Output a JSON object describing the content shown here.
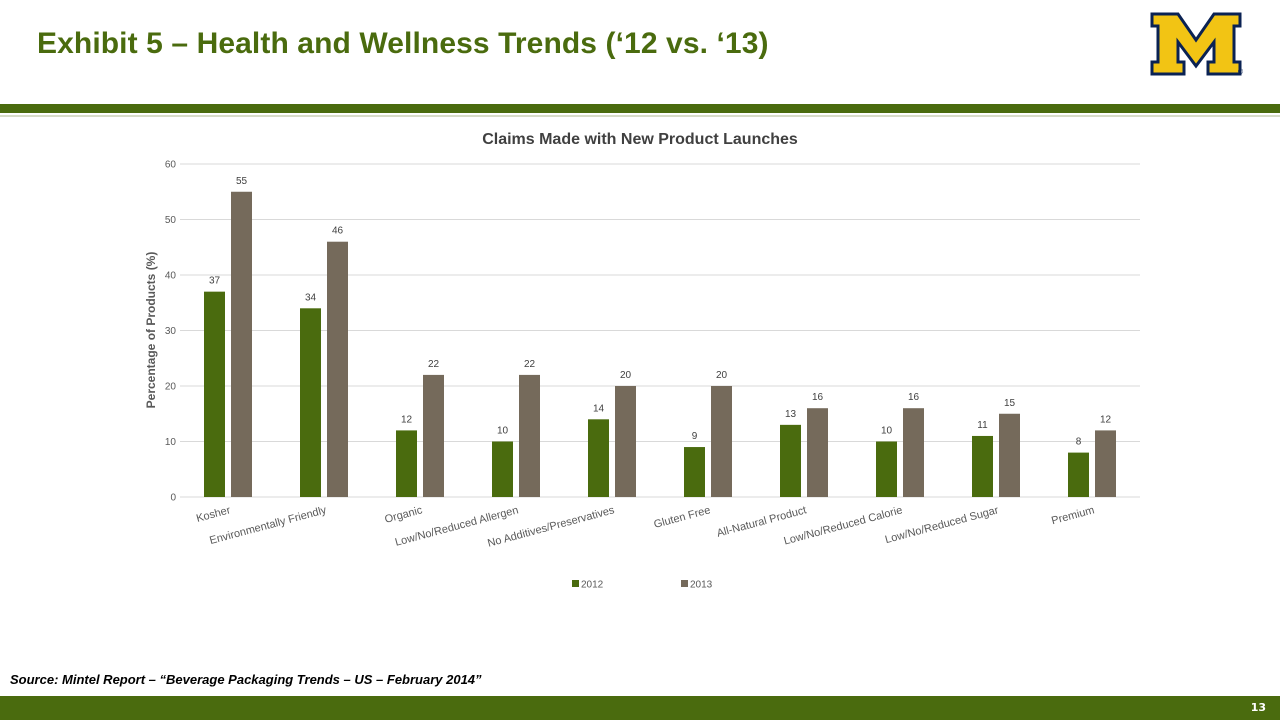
{
  "slide": {
    "title": "Exhibit 5 – Health and Wellness Trends (‘12 vs. ‘13)",
    "source": "Source: Mintel Report – “Beverage Packaging Trends – US – February 2014”",
    "page_number": "13",
    "logo_letter": "M",
    "logo_mark": "®"
  },
  "colors": {
    "brand_green": "#4a6b0e",
    "series_2012": "#4a6b0e",
    "series_2013": "#756a5b",
    "logo_gold": "#f2c414",
    "logo_navy": "#0a2253",
    "gridline": "#d9d9d9"
  },
  "chart_data": {
    "type": "bar",
    "title": "Claims Made with New Product Launches",
    "xlabel": "",
    "ylabel": "Percentage of Products (%)",
    "ylim": [
      0,
      60
    ],
    "yticks": [
      0,
      10,
      20,
      30,
      40,
      50,
      60
    ],
    "grid": true,
    "legend_position": "bottom",
    "categories": [
      "Kosher",
      "Environmentally Friendly",
      "Organic",
      "Low/No/Reduced Allergen",
      "No Additives/Preservatives",
      "Gluten Free",
      "All-Natural Product",
      "Low/No/Reduced Calorie",
      "Low/No/Reduced Sugar",
      "Premium"
    ],
    "series": [
      {
        "name": "2012",
        "color": "#4a6b0e",
        "values": [
          37,
          34,
          12,
          10,
          14,
          9,
          13,
          10,
          11,
          8
        ]
      },
      {
        "name": "2013",
        "color": "#756a5b",
        "values": [
          55,
          46,
          22,
          22,
          20,
          20,
          16,
          16,
          15,
          12
        ]
      }
    ]
  }
}
